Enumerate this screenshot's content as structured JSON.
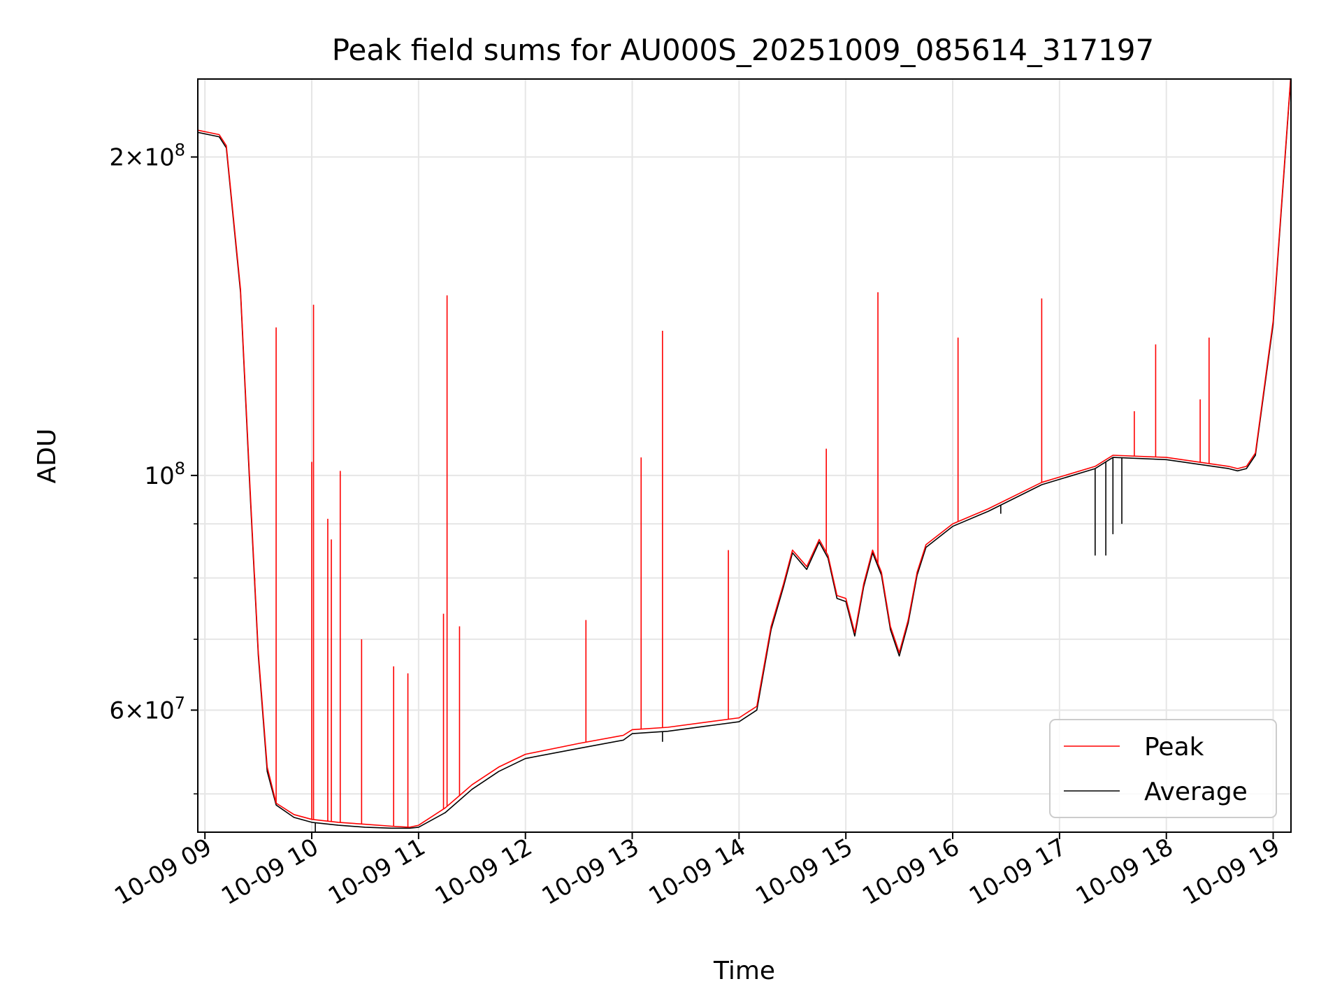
{
  "chart_data": {
    "type": "line",
    "title": "Peak field sums for AU000S_20251009_085614_317197",
    "xlabel": "Time",
    "ylabel": "ADU",
    "y_scale": "log",
    "xlim": [
      "2025-10-09 08:56",
      "2025-10-09 19:10"
    ],
    "ylim": [
      46000000,
      237000000
    ],
    "grid": true,
    "legend_position": "lower right",
    "x_ticks": [
      "10-09 09",
      "10-09 10",
      "10-09 11",
      "10-09 12",
      "10-09 13",
      "10-09 14",
      "10-09 15",
      "10-09 16",
      "10-09 17",
      "10-09 18",
      "10-09 19"
    ],
    "y_major_ticks": [
      {
        "value": 200000000,
        "mantissa": "2",
        "exponent": "8"
      },
      {
        "value": 100000000,
        "mantissa": "",
        "exponent": "8"
      },
      {
        "value": 60000000,
        "mantissa": "6",
        "exponent": "7"
      }
    ],
    "y_minor_ticks": [
      50000000,
      70000000,
      80000000,
      90000000
    ],
    "series": [
      {
        "name": "Peak",
        "color": "#ff0000",
        "x": [
          "2025-10-09 08:56",
          "2025-10-09 09:08",
          "2025-10-09 09:12",
          "2025-10-09 09:20",
          "2025-10-09 09:25",
          "2025-10-09 09:30",
          "2025-10-09 09:35",
          "2025-10-09 09:40",
          "2025-10-09 09:50",
          "2025-10-09 10:00",
          "2025-10-09 10:15",
          "2025-10-09 10:30",
          "2025-10-09 10:45",
          "2025-10-09 10:55",
          "2025-10-09 11:00",
          "2025-10-09 11:15",
          "2025-10-09 11:30",
          "2025-10-09 11:45",
          "2025-10-09 12:00",
          "2025-10-09 12:30",
          "2025-10-09 12:55",
          "2025-10-09 13:00",
          "2025-10-09 13:20",
          "2025-10-09 14:00",
          "2025-10-09 14:10",
          "2025-10-09 14:18",
          "2025-10-09 14:25",
          "2025-10-09 14:30",
          "2025-10-09 14:38",
          "2025-10-09 14:45",
          "2025-10-09 14:50",
          "2025-10-09 14:55",
          "2025-10-09 15:00",
          "2025-10-09 15:05",
          "2025-10-09 15:10",
          "2025-10-09 15:15",
          "2025-10-09 15:20",
          "2025-10-09 15:25",
          "2025-10-09 15:30",
          "2025-10-09 15:35",
          "2025-10-09 15:40",
          "2025-10-09 15:45",
          "2025-10-09 16:00",
          "2025-10-09 16:20",
          "2025-10-09 16:50",
          "2025-10-09 17:20",
          "2025-10-09 17:30",
          "2025-10-09 18:00",
          "2025-10-09 18:35",
          "2025-10-09 18:40",
          "2025-10-09 18:45",
          "2025-10-09 18:50",
          "2025-10-09 19:00",
          "2025-10-09 19:10"
        ],
        "values": [
          212000000,
          210000000,
          205000000,
          150000000,
          100000000,
          68000000,
          53000000,
          49000000,
          47800000,
          47300000,
          47000000,
          46800000,
          46600000,
          46500000,
          46700000,
          48500000,
          51000000,
          53000000,
          54500000,
          55800000,
          56800000,
          57500000,
          57800000,
          59000000,
          60500000,
          72000000,
          79000000,
          85000000,
          82000000,
          87000000,
          84000000,
          77000000,
          76500000,
          71000000,
          79000000,
          85000000,
          81000000,
          72000000,
          68000000,
          73000000,
          81000000,
          86000000,
          90000000,
          93000000,
          98500000,
          102000000,
          104500000,
          104000000,
          102000000,
          101500000,
          102000000,
          105000000,
          140000000,
          240000000
        ],
        "spikes": [
          {
            "x": "2025-10-09 09:40",
            "value": 138000000
          },
          {
            "x": "2025-10-09 10:01",
            "value": 145000000
          },
          {
            "x": "2025-10-09 10:00",
            "value": 103000000
          },
          {
            "x": "2025-10-09 10:09",
            "value": 91000000
          },
          {
            "x": "2025-10-09 10:11",
            "value": 87000000
          },
          {
            "x": "2025-10-09 10:16",
            "value": 101000000
          },
          {
            "x": "2025-10-09 09:28",
            "value": 80000000
          },
          {
            "x": "2025-10-09 10:46",
            "value": 66000000
          },
          {
            "x": "2025-10-09 10:54",
            "value": 65000000
          },
          {
            "x": "2025-10-09 10:28",
            "value": 70000000
          },
          {
            "x": "2025-10-09 11:14",
            "value": 74000000
          },
          {
            "x": "2025-10-09 11:16",
            "value": 148000000
          },
          {
            "x": "2025-10-09 11:23",
            "value": 72000000
          },
          {
            "x": "2025-10-09 12:34",
            "value": 73000000
          },
          {
            "x": "2025-10-09 13:05",
            "value": 104000000
          },
          {
            "x": "2025-10-09 13:17",
            "value": 137000000
          },
          {
            "x": "2025-10-09 13:54",
            "value": 85000000
          },
          {
            "x": "2025-10-09 14:49",
            "value": 106000000
          },
          {
            "x": "2025-10-09 15:18",
            "value": 149000000
          },
          {
            "x": "2025-10-09 16:03",
            "value": 135000000
          },
          {
            "x": "2025-10-09 16:50",
            "value": 147000000
          },
          {
            "x": "2025-10-09 17:42",
            "value": 115000000
          },
          {
            "x": "2025-10-09 17:54",
            "value": 133000000
          },
          {
            "x": "2025-10-09 18:19",
            "value": 118000000
          },
          {
            "x": "2025-10-09 18:24",
            "value": 135000000
          }
        ]
      },
      {
        "name": "Average",
        "color": "#000000",
        "x": [
          "2025-10-09 08:56",
          "2025-10-09 09:08",
          "2025-10-09 09:12",
          "2025-10-09 09:20",
          "2025-10-09 09:25",
          "2025-10-09 09:30",
          "2025-10-09 09:35",
          "2025-10-09 09:40",
          "2025-10-09 09:50",
          "2025-10-09 10:00",
          "2025-10-09 10:15",
          "2025-10-09 10:30",
          "2025-10-09 10:45",
          "2025-10-09 10:55",
          "2025-10-09 11:00",
          "2025-10-09 11:15",
          "2025-10-09 11:30",
          "2025-10-09 11:45",
          "2025-10-09 12:00",
          "2025-10-09 12:30",
          "2025-10-09 12:55",
          "2025-10-09 13:00",
          "2025-10-09 13:20",
          "2025-10-09 14:00",
          "2025-10-09 14:10",
          "2025-10-09 14:18",
          "2025-10-09 14:25",
          "2025-10-09 14:30",
          "2025-10-09 14:38",
          "2025-10-09 14:45",
          "2025-10-09 14:50",
          "2025-10-09 14:55",
          "2025-10-09 15:00",
          "2025-10-09 15:05",
          "2025-10-09 15:10",
          "2025-10-09 15:15",
          "2025-10-09 15:20",
          "2025-10-09 15:25",
          "2025-10-09 15:30",
          "2025-10-09 15:35",
          "2025-10-09 15:40",
          "2025-10-09 15:45",
          "2025-10-09 16:00",
          "2025-10-09 16:20",
          "2025-10-09 16:50",
          "2025-10-09 17:20",
          "2025-10-09 17:30",
          "2025-10-09 18:00",
          "2025-10-09 18:35",
          "2025-10-09 18:40",
          "2025-10-09 18:45",
          "2025-10-09 18:50",
          "2025-10-09 19:00",
          "2025-10-09 19:10"
        ],
        "values": [
          211000000,
          209000000,
          204000000,
          149000000,
          99000000,
          67500000,
          52500000,
          48800000,
          47500000,
          47000000,
          46700000,
          46500000,
          46400000,
          46400000,
          46500000,
          48000000,
          50500000,
          52500000,
          54000000,
          55200000,
          56200000,
          57000000,
          57300000,
          58500000,
          60000000,
          71500000,
          78500000,
          84500000,
          81500000,
          86500000,
          83500000,
          76500000,
          76000000,
          70500000,
          78500000,
          84500000,
          80500000,
          71500000,
          67500000,
          72500000,
          80500000,
          85500000,
          89500000,
          92500000,
          98000000,
          101500000,
          104000000,
          103500000,
          101500000,
          101000000,
          101500000,
          104500000,
          139000000,
          239000000
        ],
        "dips": [
          {
            "x": "2025-10-09 10:02",
            "value": 45800000
          },
          {
            "x": "2025-10-09 13:17",
            "value": 56000000
          },
          {
            "x": "2025-10-09 16:27",
            "value": 92000000
          },
          {
            "x": "2025-10-09 17:20",
            "value": 84000000
          },
          {
            "x": "2025-10-09 17:26",
            "value": 84000000
          },
          {
            "x": "2025-10-09 17:30",
            "value": 88000000
          },
          {
            "x": "2025-10-09 17:35",
            "value": 90000000
          }
        ]
      }
    ]
  }
}
